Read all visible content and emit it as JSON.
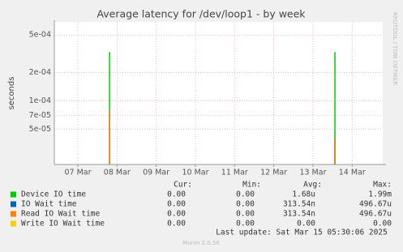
{
  "chart_data": {
    "type": "spike",
    "title": "Average latency for /dev/loop1 - by week",
    "y_label": "seconds",
    "side_text": "RRDTOOL / TOBI OETIKER",
    "log_y": true,
    "grid": true,
    "xlim": [
      6.4,
      14.78
    ],
    "xticks": [
      {
        "value": 7,
        "label": "07 Mar"
      },
      {
        "value": 8,
        "label": "08 Mar"
      },
      {
        "value": 9,
        "label": "09 Mar"
      },
      {
        "value": 10,
        "label": "10 Mar"
      },
      {
        "value": 11,
        "label": "11 Mar"
      },
      {
        "value": 12,
        "label": "12 Mar"
      },
      {
        "value": 13,
        "label": "13 Mar"
      },
      {
        "value": 14,
        "label": "14 Mar"
      }
    ],
    "ylim": [
      2.1e-05,
      0.00069
    ],
    "yticks": [
      {
        "value": 5e-05,
        "label": "5e-05"
      },
      {
        "value": 7e-05,
        "label": "7e-05"
      },
      {
        "value": 0.0001,
        "label": "1e-04"
      },
      {
        "value": 0.0002,
        "label": "2e-04"
      },
      {
        "value": 0.0005,
        "label": "5e-04"
      }
    ],
    "x": [
      7.81,
      13.56
    ],
    "columns": [
      "Cur:",
      "Min:",
      "Avg:",
      "Max:"
    ],
    "series": [
      {
        "name": "Device IO time",
        "color": "#00cc00",
        "values": [
          0.00033,
          0.00033
        ],
        "stats": [
          "0.00",
          "0.00",
          "1.68u",
          "1.99m"
        ]
      },
      {
        "name": "IO Wait time",
        "color": "#0066b3",
        "values": [
          8e-05,
          4e-05
        ],
        "stats": [
          "0.00",
          "0.00",
          "313.54n",
          "496.67u"
        ]
      },
      {
        "name": "Read IO Wait time",
        "color": "#ff8000",
        "values": [
          8e-05,
          4e-05
        ],
        "stats": [
          "0.00",
          "0.00",
          "313.54n",
          "496.67u"
        ]
      },
      {
        "name": "Write IO Wait time",
        "color": "#ffcc00",
        "values": [
          null,
          null
        ],
        "stats": [
          "0.00",
          "0.00",
          "0.00",
          "0.00"
        ]
      }
    ],
    "last_update": "Last update: Sat Mar 15 05:30:06 2025",
    "footer": "Munin 2.0.56"
  }
}
